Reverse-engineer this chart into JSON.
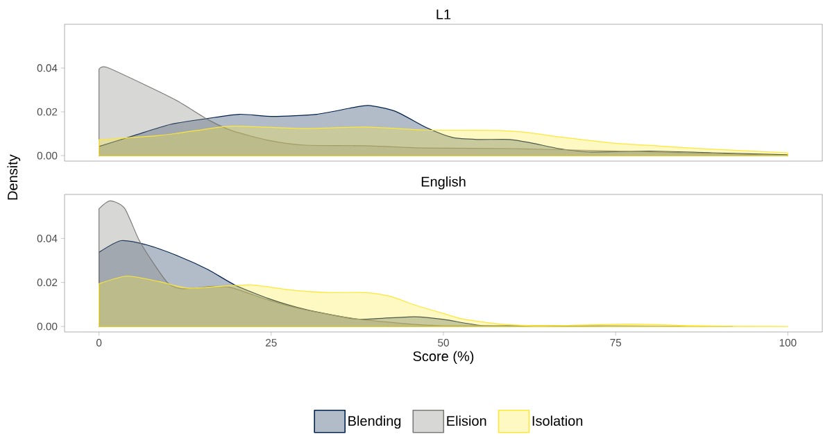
{
  "chart_data": [
    {
      "type": "area",
      "title": "L1",
      "ylabel": "Density",
      "xlim": [
        -5,
        105
      ],
      "ylim": [
        -0.0025,
        0.06
      ],
      "yticks": [
        {
          "value": 0,
          "label": "0.00"
        },
        {
          "value": 0.02,
          "label": "0.02"
        },
        {
          "value": 0.04,
          "label": "0.04"
        }
      ],
      "tick_labels": "y",
      "series": [
        {
          "color": "#00204D",
          "x": [
            0,
            5.1,
            10.4,
            15.8,
            20.4,
            25.3,
            31.6,
            36.3,
            39.1,
            43,
            47.6,
            51.3,
            54.9,
            59.6,
            62.8,
            66.8,
            71.1,
            80,
            89.1,
            100
          ],
          "values": [
            0.0042,
            0.0092,
            0.0143,
            0.017,
            0.0189,
            0.0179,
            0.0189,
            0.0216,
            0.0229,
            0.0203,
            0.0127,
            0.0083,
            0.0074,
            0.0074,
            0.0058,
            0.0032,
            0.0017,
            0.0021,
            0.0013,
            0.0004
          ]
        },
        {
          "color": "#7C7B78",
          "x": [
            0,
            1.1,
            6.9,
            11.5,
            15.8,
            19.3,
            24.6,
            29.9,
            38.7,
            47.5,
            60.3,
            81.9,
            100
          ],
          "values": [
            0.0395,
            0.0404,
            0.032,
            0.0248,
            0.0165,
            0.0114,
            0.007,
            0.0048,
            0.0045,
            0.0035,
            0.0032,
            0.0016,
            0.0001
          ]
        },
        {
          "color": "#FDE737",
          "x": [
            0,
            8.7,
            14,
            19.3,
            29.9,
            38.7,
            47.5,
            57.8,
            62.1,
            67.5,
            74.7,
            81.9,
            89.1,
            100
          ],
          "values": [
            0.0073,
            0.0092,
            0.0114,
            0.0135,
            0.0124,
            0.0131,
            0.0117,
            0.0115,
            0.0106,
            0.0083,
            0.0057,
            0.0043,
            0.0029,
            0.0013
          ]
        }
      ]
    },
    {
      "type": "area",
      "title": "English",
      "xlabel": "Score (%)",
      "xlim": [
        -5,
        105
      ],
      "xticks": [
        0,
        25,
        50,
        75,
        100
      ],
      "ylim": [
        -0.0025,
        0.06
      ],
      "yticks": [
        {
          "value": 0,
          "label": "0.00"
        },
        {
          "value": 0.02,
          "label": "0.02"
        },
        {
          "value": 0.04,
          "label": "0.04"
        }
      ],
      "legend": "bottom",
      "series": [
        {
          "name": "Blending",
          "color": "#00204D",
          "x": [
            0,
            3.2,
            6.9,
            11.5,
            15.8,
            19.7,
            24.6,
            29.9,
            37,
            40.5,
            45.8,
            50,
            55.6,
            62,
            73
          ],
          "values": [
            0.0337,
            0.039,
            0.0371,
            0.032,
            0.0259,
            0.0189,
            0.0127,
            0.0078,
            0.0035,
            0.0036,
            0.0044,
            0.0032,
            0.0004,
            0.0001,
            0
          ]
        },
        {
          "name": "Elision",
          "color": "#7C7B78",
          "x": [
            0,
            1.6,
            3.7,
            5.8,
            8,
            10.1,
            12.2,
            16.5,
            19.3,
            24.6,
            29.9,
            37,
            44,
            50,
            60,
            75,
            92
          ],
          "values": [
            0.0535,
            0.0571,
            0.0538,
            0.0394,
            0.0283,
            0.0194,
            0.0171,
            0.0182,
            0.0176,
            0.012,
            0.0076,
            0.0036,
            0.0014,
            0.0003,
            0.0005,
            0.0003,
            0
          ]
        },
        {
          "name": "Isolation",
          "color": "#FDE737",
          "x": [
            0,
            4.1,
            8.7,
            12.9,
            17.5,
            22.1,
            28.1,
            33.4,
            38.7,
            42.3,
            45.8,
            50,
            53.1,
            58.5,
            63.9,
            69.3,
            77.2,
            85.5,
            92.7,
            100
          ],
          "values": [
            0.0194,
            0.0229,
            0.0204,
            0.0174,
            0.0182,
            0.0189,
            0.0165,
            0.0154,
            0.0154,
            0.0137,
            0.0098,
            0.0059,
            0.0032,
            0.001,
            0.0004,
            0.0006,
            0.0011,
            0.0004,
            0.0001,
            0
          ]
        }
      ]
    }
  ]
}
